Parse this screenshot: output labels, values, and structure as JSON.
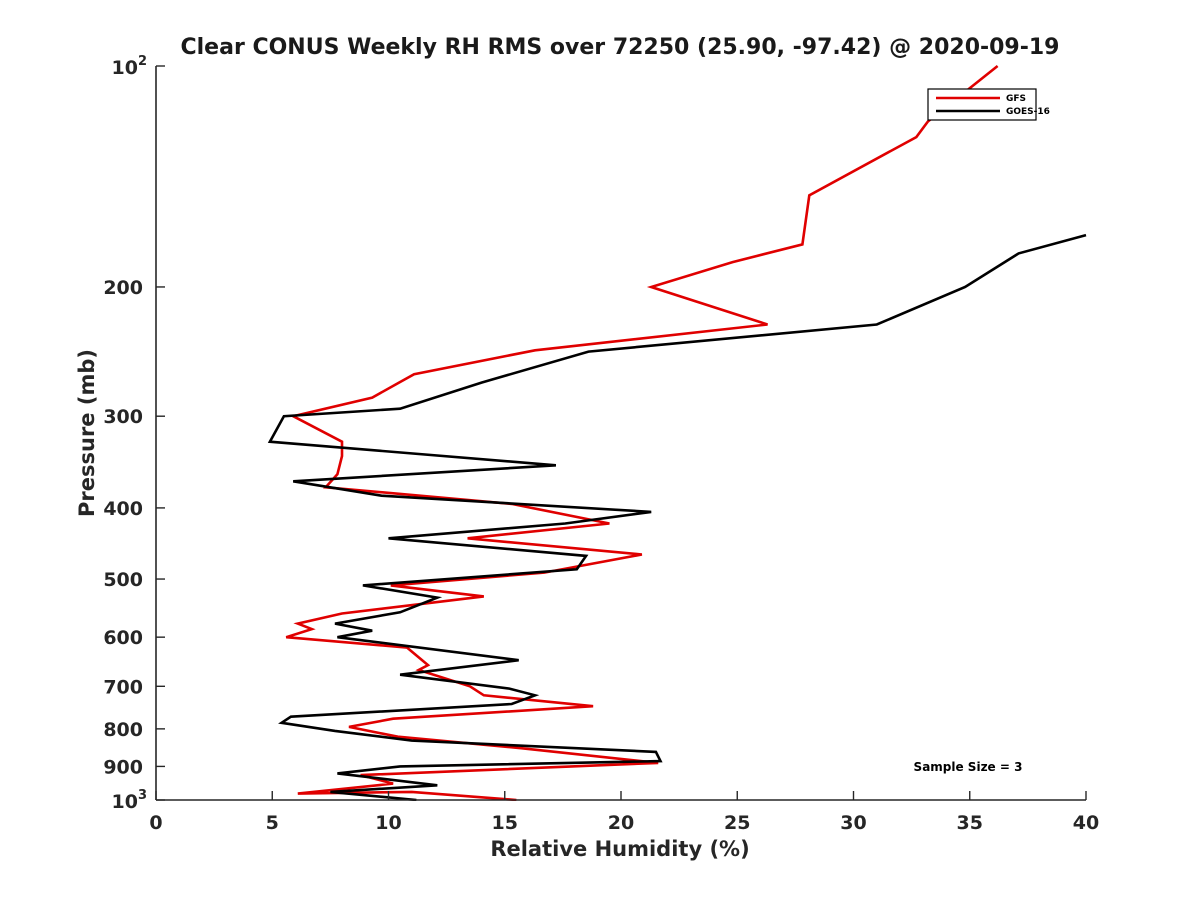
{
  "chart_data": {
    "type": "line",
    "title": "Clear CONUS Weekly RH RMS over 72250 (25.90, -97.42) @ 2020-09-19",
    "xlabel": "Relative Humidity (%)",
    "ylabel": "Pressure (mb)",
    "xlim": [
      0,
      40
    ],
    "ylim": [
      100,
      1000
    ],
    "y_scale": "log",
    "y_reversed": true,
    "x_ticks": [
      "0",
      "5",
      "10",
      "15",
      "20",
      "25",
      "30",
      "35",
      "40"
    ],
    "y_ticks": [
      {
        "value": 100,
        "base": "10",
        "exp": "2"
      },
      {
        "value": 200,
        "label": "200"
      },
      {
        "value": 300,
        "label": "300"
      },
      {
        "value": 400,
        "label": "400"
      },
      {
        "value": 500,
        "label": "500"
      },
      {
        "value": 600,
        "label": "600"
      },
      {
        "value": 700,
        "label": "700"
      },
      {
        "value": 800,
        "label": "800"
      },
      {
        "value": 900,
        "label": "900"
      },
      {
        "value": 1000,
        "base": "10",
        "exp": "3"
      }
    ],
    "grid": false,
    "legend_position": "top-right",
    "annotation": "Sample Size = 3",
    "series": [
      {
        "name": "GFS",
        "color": "#e00000",
        "points": [
          [
            36.2,
            100
          ],
          [
            33.2,
            119
          ],
          [
            32.7,
            125
          ],
          [
            28.1,
            150
          ],
          [
            27.8,
            175
          ],
          [
            24.8,
            185
          ],
          [
            21.3,
            200
          ],
          [
            26.3,
            225
          ],
          [
            16.3,
            244
          ],
          [
            11.1,
            263
          ],
          [
            9.3,
            283
          ],
          [
            5.9,
            300
          ],
          [
            8.0,
            325
          ],
          [
            8.0,
            340
          ],
          [
            7.8,
            360
          ],
          [
            7.3,
            375
          ],
          [
            15.3,
            395
          ],
          [
            19.5,
            420
          ],
          [
            13.4,
            440
          ],
          [
            20.9,
            463
          ],
          [
            16.7,
            490
          ],
          [
            10.1,
            510
          ],
          [
            14.1,
            528
          ],
          [
            8.0,
            557
          ],
          [
            6.1,
            575
          ],
          [
            6.7,
            585
          ],
          [
            5.6,
            600
          ],
          [
            10.8,
            620
          ],
          [
            11.7,
            655
          ],
          [
            11.3,
            665
          ],
          [
            13.5,
            700
          ],
          [
            14.1,
            720
          ],
          [
            18.8,
            745
          ],
          [
            10.2,
            775
          ],
          [
            8.3,
            795
          ],
          [
            10.4,
            820
          ],
          [
            15.7,
            850
          ],
          [
            21.6,
            890
          ],
          [
            8.8,
            925
          ],
          [
            10.2,
            950
          ],
          [
            6.1,
            980
          ],
          [
            11.0,
            975
          ],
          [
            15.5,
            1000
          ]
        ]
      },
      {
        "name": "GOES-16",
        "color": "#000000",
        "points": [
          [
            40.0,
            170
          ],
          [
            37.1,
            180
          ],
          [
            34.8,
            200
          ],
          [
            31.0,
            225
          ],
          [
            18.6,
            245
          ],
          [
            14.0,
            270
          ],
          [
            10.5,
            293
          ],
          [
            5.5,
            300
          ],
          [
            4.9,
            325
          ],
          [
            17.2,
            350
          ],
          [
            5.9,
            368
          ],
          [
            9.7,
            385
          ],
          [
            21.3,
            405
          ],
          [
            17.6,
            420
          ],
          [
            10.0,
            440
          ],
          [
            18.5,
            465
          ],
          [
            18.1,
            485
          ],
          [
            8.9,
            510
          ],
          [
            12.1,
            530
          ],
          [
            10.5,
            555
          ],
          [
            7.7,
            575
          ],
          [
            9.3,
            588
          ],
          [
            7.8,
            600
          ],
          [
            15.6,
            645
          ],
          [
            10.5,
            675
          ],
          [
            15.2,
            705
          ],
          [
            16.3,
            720
          ],
          [
            15.3,
            740
          ],
          [
            5.8,
            770
          ],
          [
            5.4,
            785
          ],
          [
            7.7,
            805
          ],
          [
            11.0,
            830
          ],
          [
            21.5,
            860
          ],
          [
            21.7,
            885
          ],
          [
            10.5,
            900
          ],
          [
            7.8,
            920
          ],
          [
            12.1,
            955
          ],
          [
            7.5,
            975
          ],
          [
            11.2,
            1000
          ]
        ]
      }
    ]
  }
}
